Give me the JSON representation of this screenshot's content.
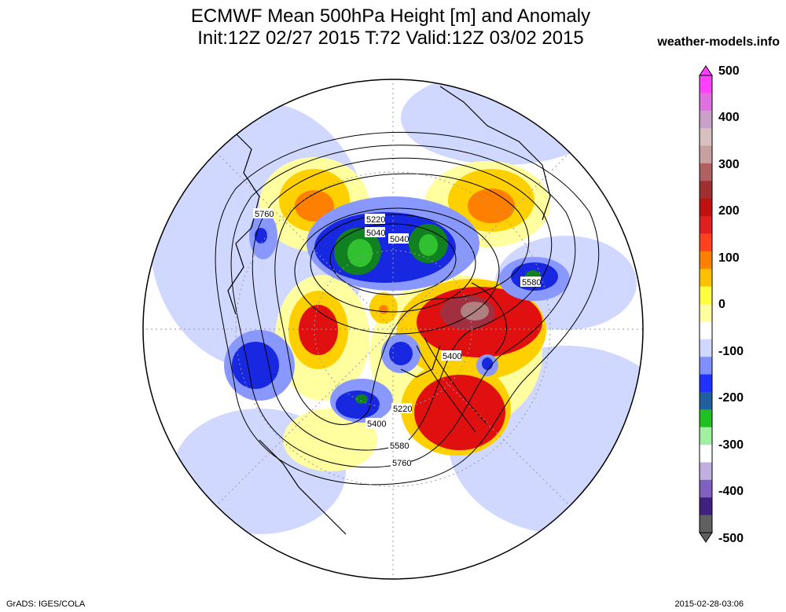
{
  "header": {
    "title_line1": "ECMWF Mean 500hPa Height [m] and Anomaly",
    "title_line2": "Init:12Z 02/27 2015 T:72 Valid:12Z 03/02 2015",
    "site": "weather-models.info"
  },
  "footer": {
    "left": "GrADS: IGES/COLA",
    "right": "2015-02-28-03:06"
  },
  "contour_labels": [
    "5760",
    "5220",
    "5040",
    "5040",
    "5580",
    "5400",
    "5220",
    "5400",
    "5580",
    "5760"
  ],
  "colorbar": {
    "ticks": [
      "500",
      "400",
      "300",
      "200",
      "100",
      "0",
      "-100",
      "-200",
      "-300",
      "-400",
      "-500"
    ],
    "colors": [
      "#ff40ff",
      "#e070e0",
      "#c8a0c8",
      "#d8c0c0",
      "#c8a0a0",
      "#b06060",
      "#a03030",
      "#c01010",
      "#e02020",
      "#ff4020",
      "#ff8000",
      "#ffc000",
      "#ffff40",
      "#ffffa0",
      "#ffffff",
      "#d0d8ff",
      "#8090ff",
      "#2030ff",
      "#2060a0",
      "#20c020",
      "#a0f0a0",
      "#ffffff",
      "#c0b0e0",
      "#8060c0",
      "#402080",
      "#606060"
    ]
  },
  "map_colors": {
    "neg_weak": "#d0d8ff",
    "neg_mid": "#8898ff",
    "neg_strong": "#1828e0",
    "neg_deep": "#108020",
    "neg_core": "#30c030",
    "pos_weak": "#ffffa0",
    "pos_mid": "#ffd000",
    "pos_strong": "#ff8000",
    "pos_core": "#e01010",
    "pos_deep": "#a03040",
    "pos_extreme": "#b08080"
  }
}
